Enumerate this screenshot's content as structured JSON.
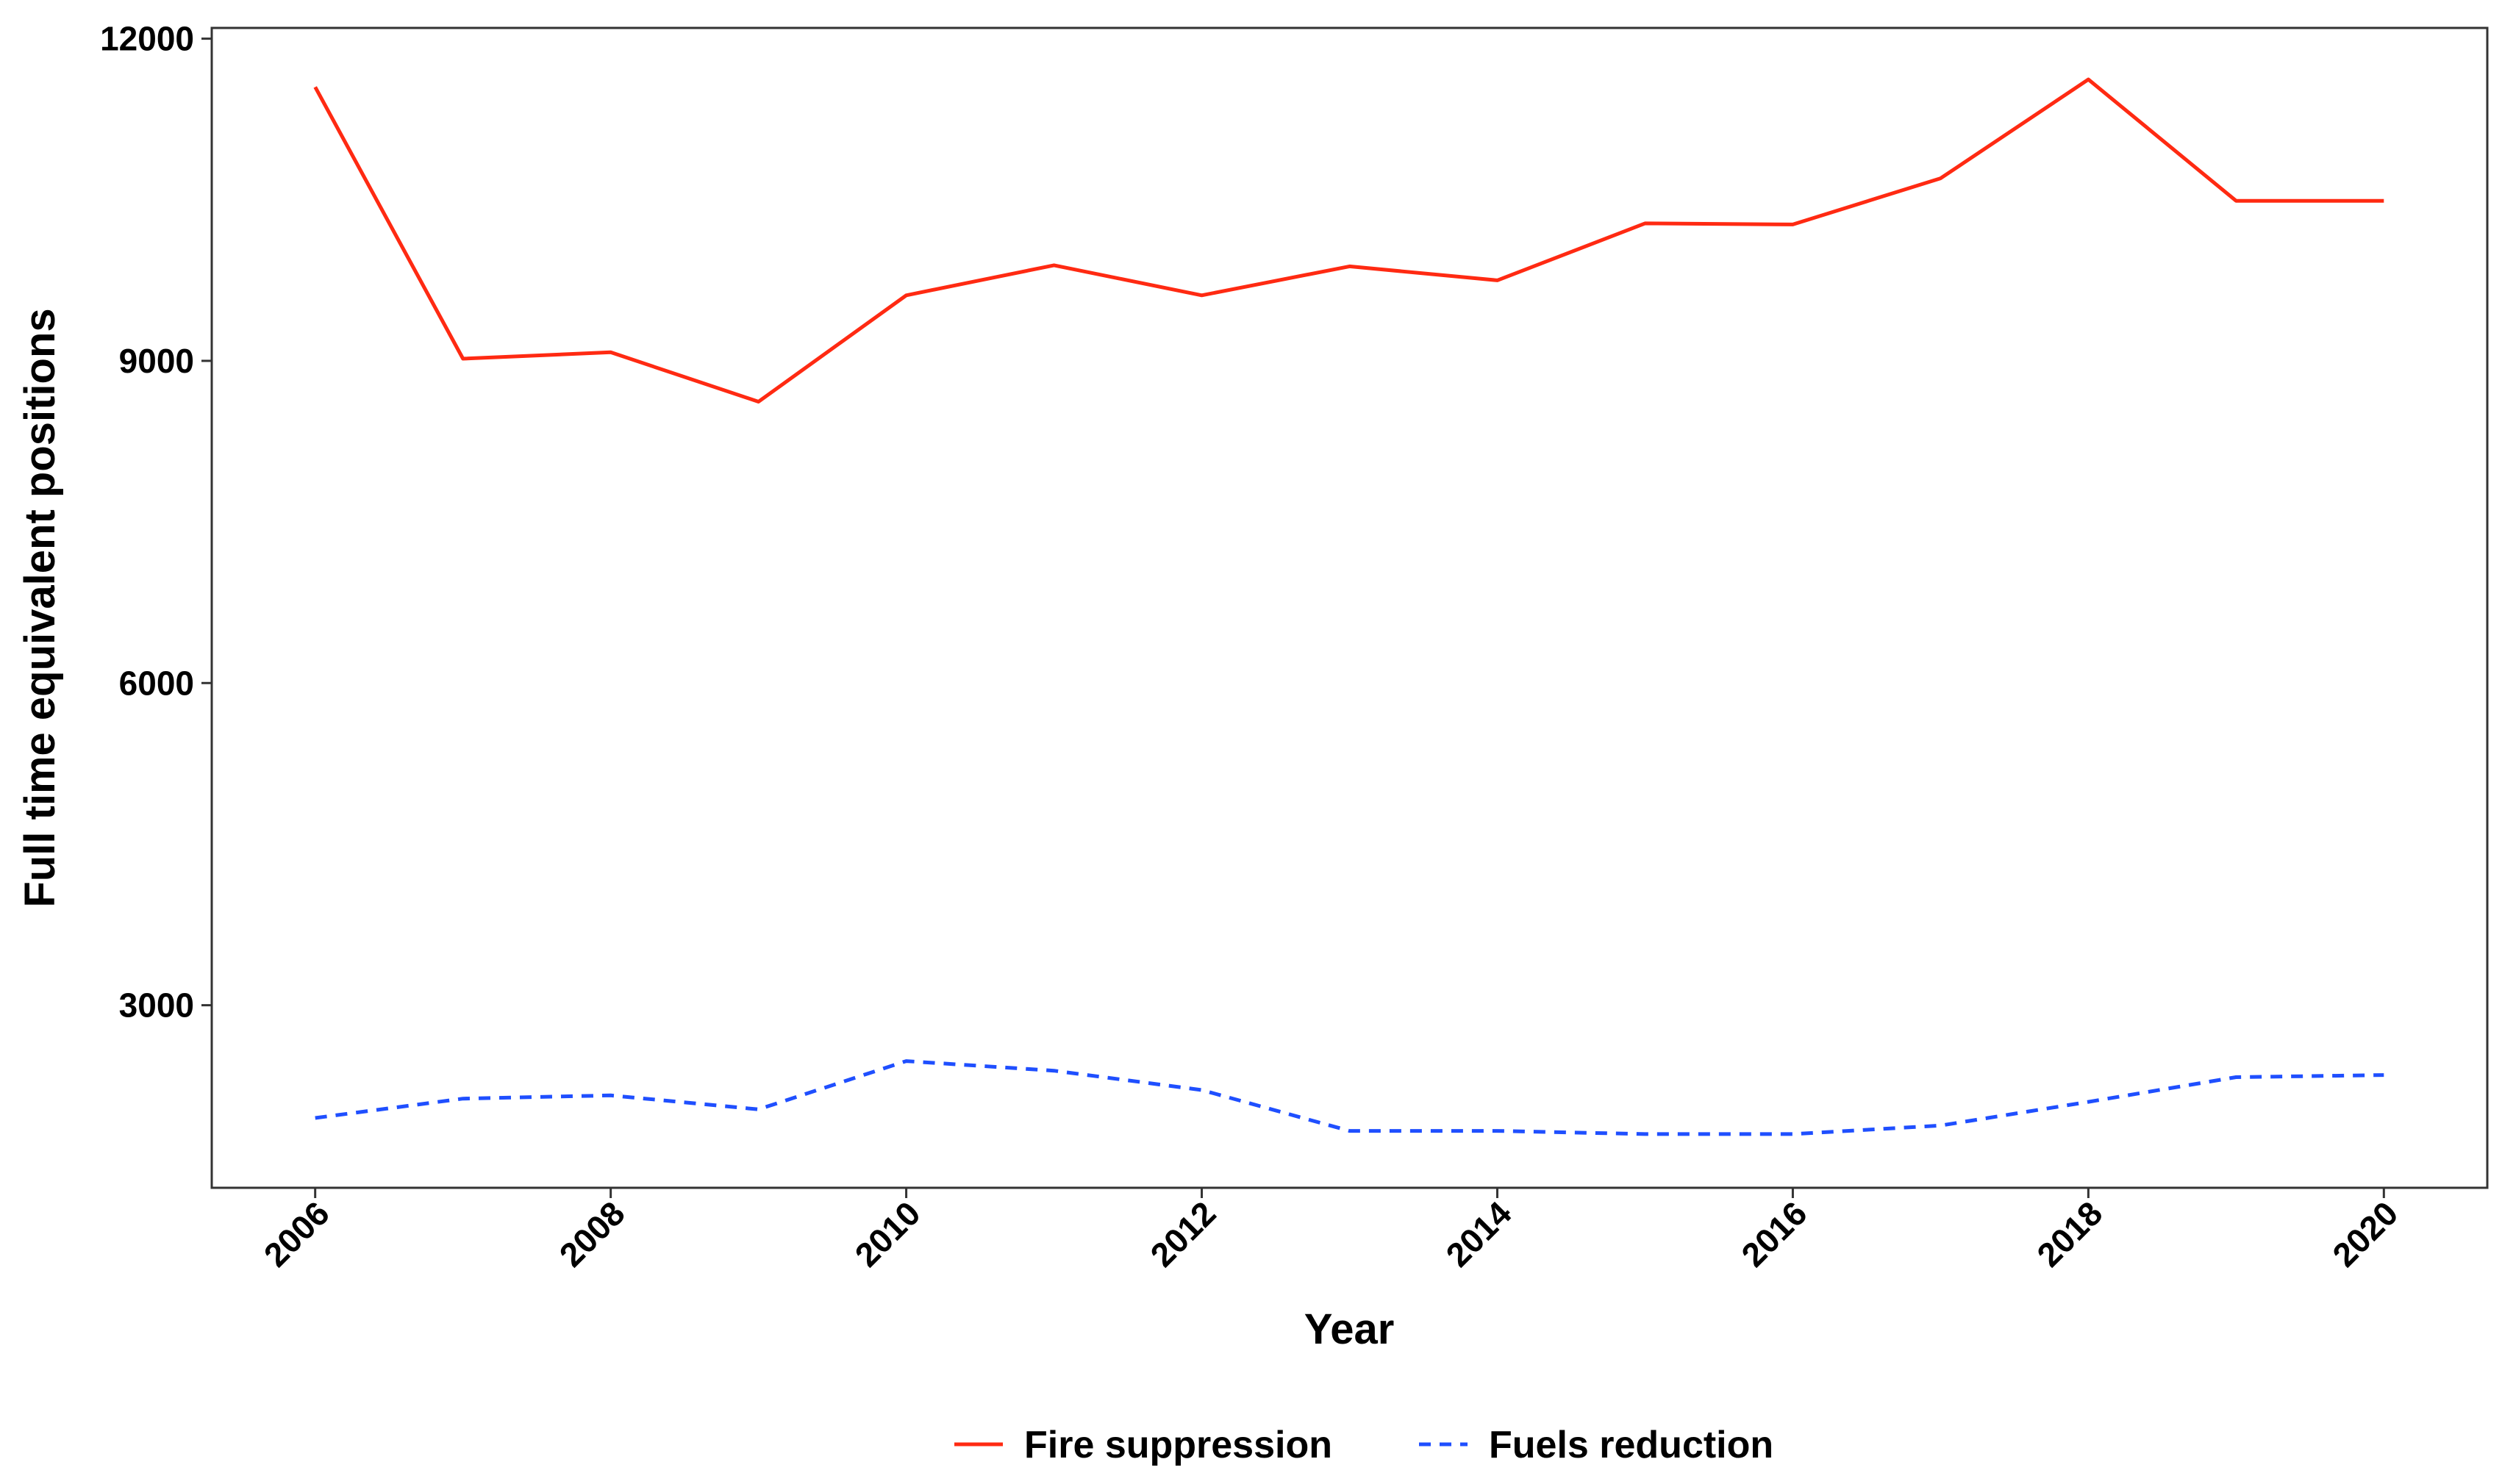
{
  "chart_data": {
    "type": "line",
    "x": [
      2006,
      2007,
      2008,
      2009,
      2010,
      2011,
      2012,
      2013,
      2014,
      2015,
      2016,
      2017,
      2018,
      2019,
      2020
    ],
    "series": [
      {
        "name": "Fire suppression",
        "color": "#ff2a12",
        "dash": "solid",
        "values": [
          11550,
          9020,
          9080,
          8620,
          9610,
          9890,
          9610,
          9880,
          9750,
          10280,
          10270,
          10700,
          11620,
          10490,
          10490
        ]
      },
      {
        "name": "Fuels reduction",
        "color": "#1f4fff",
        "dash": "dashed",
        "values": [
          1950,
          2130,
          2160,
          2030,
          2480,
          2390,
          2210,
          1830,
          1830,
          1800,
          1800,
          1880,
          2100,
          2330,
          2350
        ]
      }
    ],
    "xlabel": "Year",
    "ylabel": "Full time equivalent positions",
    "xlim": [
      2005.3,
      2020.7
    ],
    "ylim": [
      1300,
      12100
    ],
    "xticks": [
      2006,
      2008,
      2010,
      2012,
      2014,
      2016,
      2018,
      2020
    ],
    "yticks": [
      3000,
      6000,
      9000,
      12000
    ],
    "xtick_labels": [
      "2006",
      "2008",
      "2010",
      "2012",
      "2014",
      "2016",
      "2018",
      "2020"
    ],
    "ytick_labels": [
      "3000",
      "6000",
      "9000",
      "12000"
    ],
    "grid": false,
    "legend_position": "bottom"
  }
}
